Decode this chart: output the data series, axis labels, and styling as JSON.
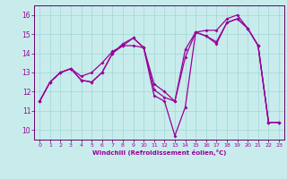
{
  "xlabel": "Windchill (Refroidissement éolien,°C)",
  "bg_color": "#c8ecec",
  "grid_color": "#a8d8d8",
  "line_color": "#990099",
  "spine_color": "#660066",
  "xlim": [
    -0.5,
    23.5
  ],
  "ylim": [
    9.5,
    16.5
  ],
  "xticks": [
    0,
    1,
    2,
    3,
    4,
    5,
    6,
    7,
    8,
    9,
    10,
    11,
    12,
    13,
    14,
    15,
    16,
    17,
    18,
    19,
    20,
    21,
    22,
    23
  ],
  "yticks": [
    10,
    11,
    12,
    13,
    14,
    15,
    16
  ],
  "series1_x": [
    0,
    1,
    2,
    3,
    4,
    5,
    6,
    7,
    8,
    9,
    10,
    11,
    12,
    13,
    14,
    15,
    16,
    17,
    18,
    19,
    20,
    21,
    22,
    23
  ],
  "series1_y": [
    11.5,
    12.5,
    13.0,
    13.2,
    12.6,
    12.5,
    13.0,
    14.0,
    14.5,
    14.8,
    14.3,
    11.8,
    11.5,
    9.7,
    11.2,
    15.1,
    14.9,
    14.6,
    15.6,
    15.8,
    15.3,
    14.4,
    10.4,
    10.4
  ],
  "series2_x": [
    0,
    1,
    2,
    3,
    4,
    5,
    6,
    7,
    8,
    9,
    10,
    11,
    12,
    13,
    14,
    15,
    16,
    17,
    18,
    19,
    20,
    21,
    22,
    23
  ],
  "series2_y": [
    11.5,
    12.5,
    13.0,
    13.2,
    12.8,
    13.0,
    13.5,
    14.1,
    14.4,
    14.4,
    14.3,
    12.4,
    12.0,
    11.5,
    13.8,
    15.1,
    15.2,
    15.2,
    15.8,
    16.0,
    15.3,
    14.4,
    10.4,
    10.4
  ],
  "series3_x": [
    0,
    1,
    2,
    3,
    4,
    5,
    6,
    7,
    8,
    9,
    10,
    11,
    12,
    13,
    14,
    15,
    16,
    17,
    18,
    19,
    20,
    21,
    22,
    23
  ],
  "series3_y": [
    11.5,
    12.5,
    13.0,
    13.2,
    12.6,
    12.5,
    13.0,
    14.0,
    14.4,
    14.8,
    14.3,
    12.1,
    11.7,
    11.5,
    14.2,
    15.1,
    14.9,
    14.5,
    15.6,
    15.8,
    15.3,
    14.4,
    10.4,
    10.4
  ]
}
